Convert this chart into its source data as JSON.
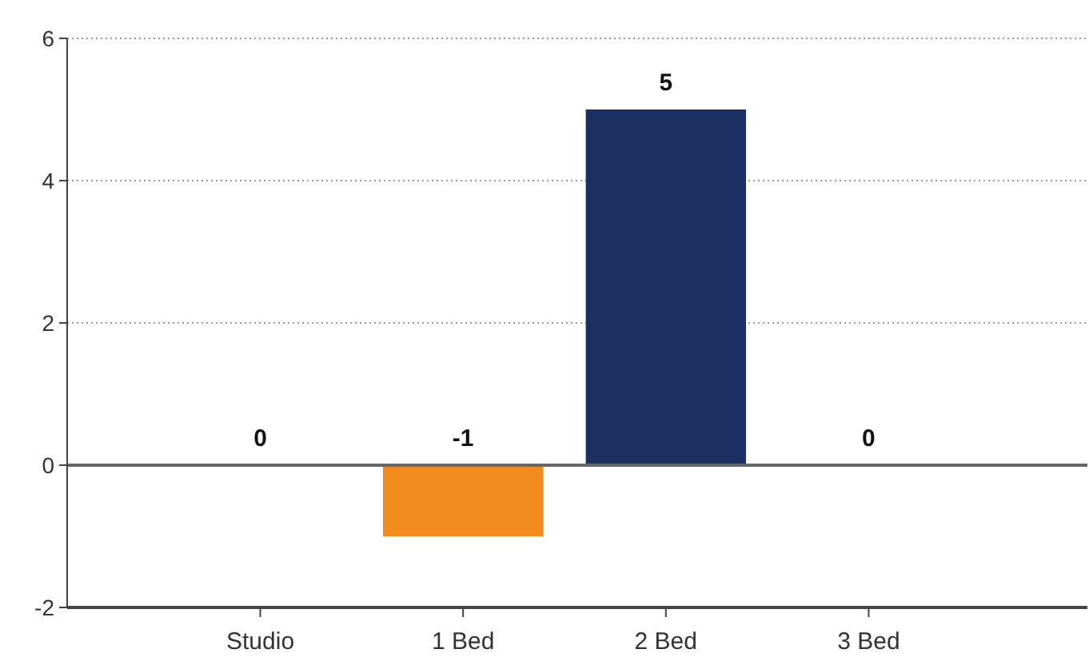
{
  "chart_data": {
    "type": "bar",
    "categories": [
      "Studio",
      "1 Bed",
      "2 Bed",
      "3 Bed"
    ],
    "values": [
      0,
      -1,
      5,
      0
    ],
    "colors": [
      "#f28c1e",
      "#f28c1e",
      "#1b2f63",
      "#1b2f63"
    ],
    "ylim": [
      -2,
      6
    ],
    "yticks": [
      -2,
      0,
      2,
      4,
      6
    ],
    "grid": "y",
    "data_labels": true
  }
}
